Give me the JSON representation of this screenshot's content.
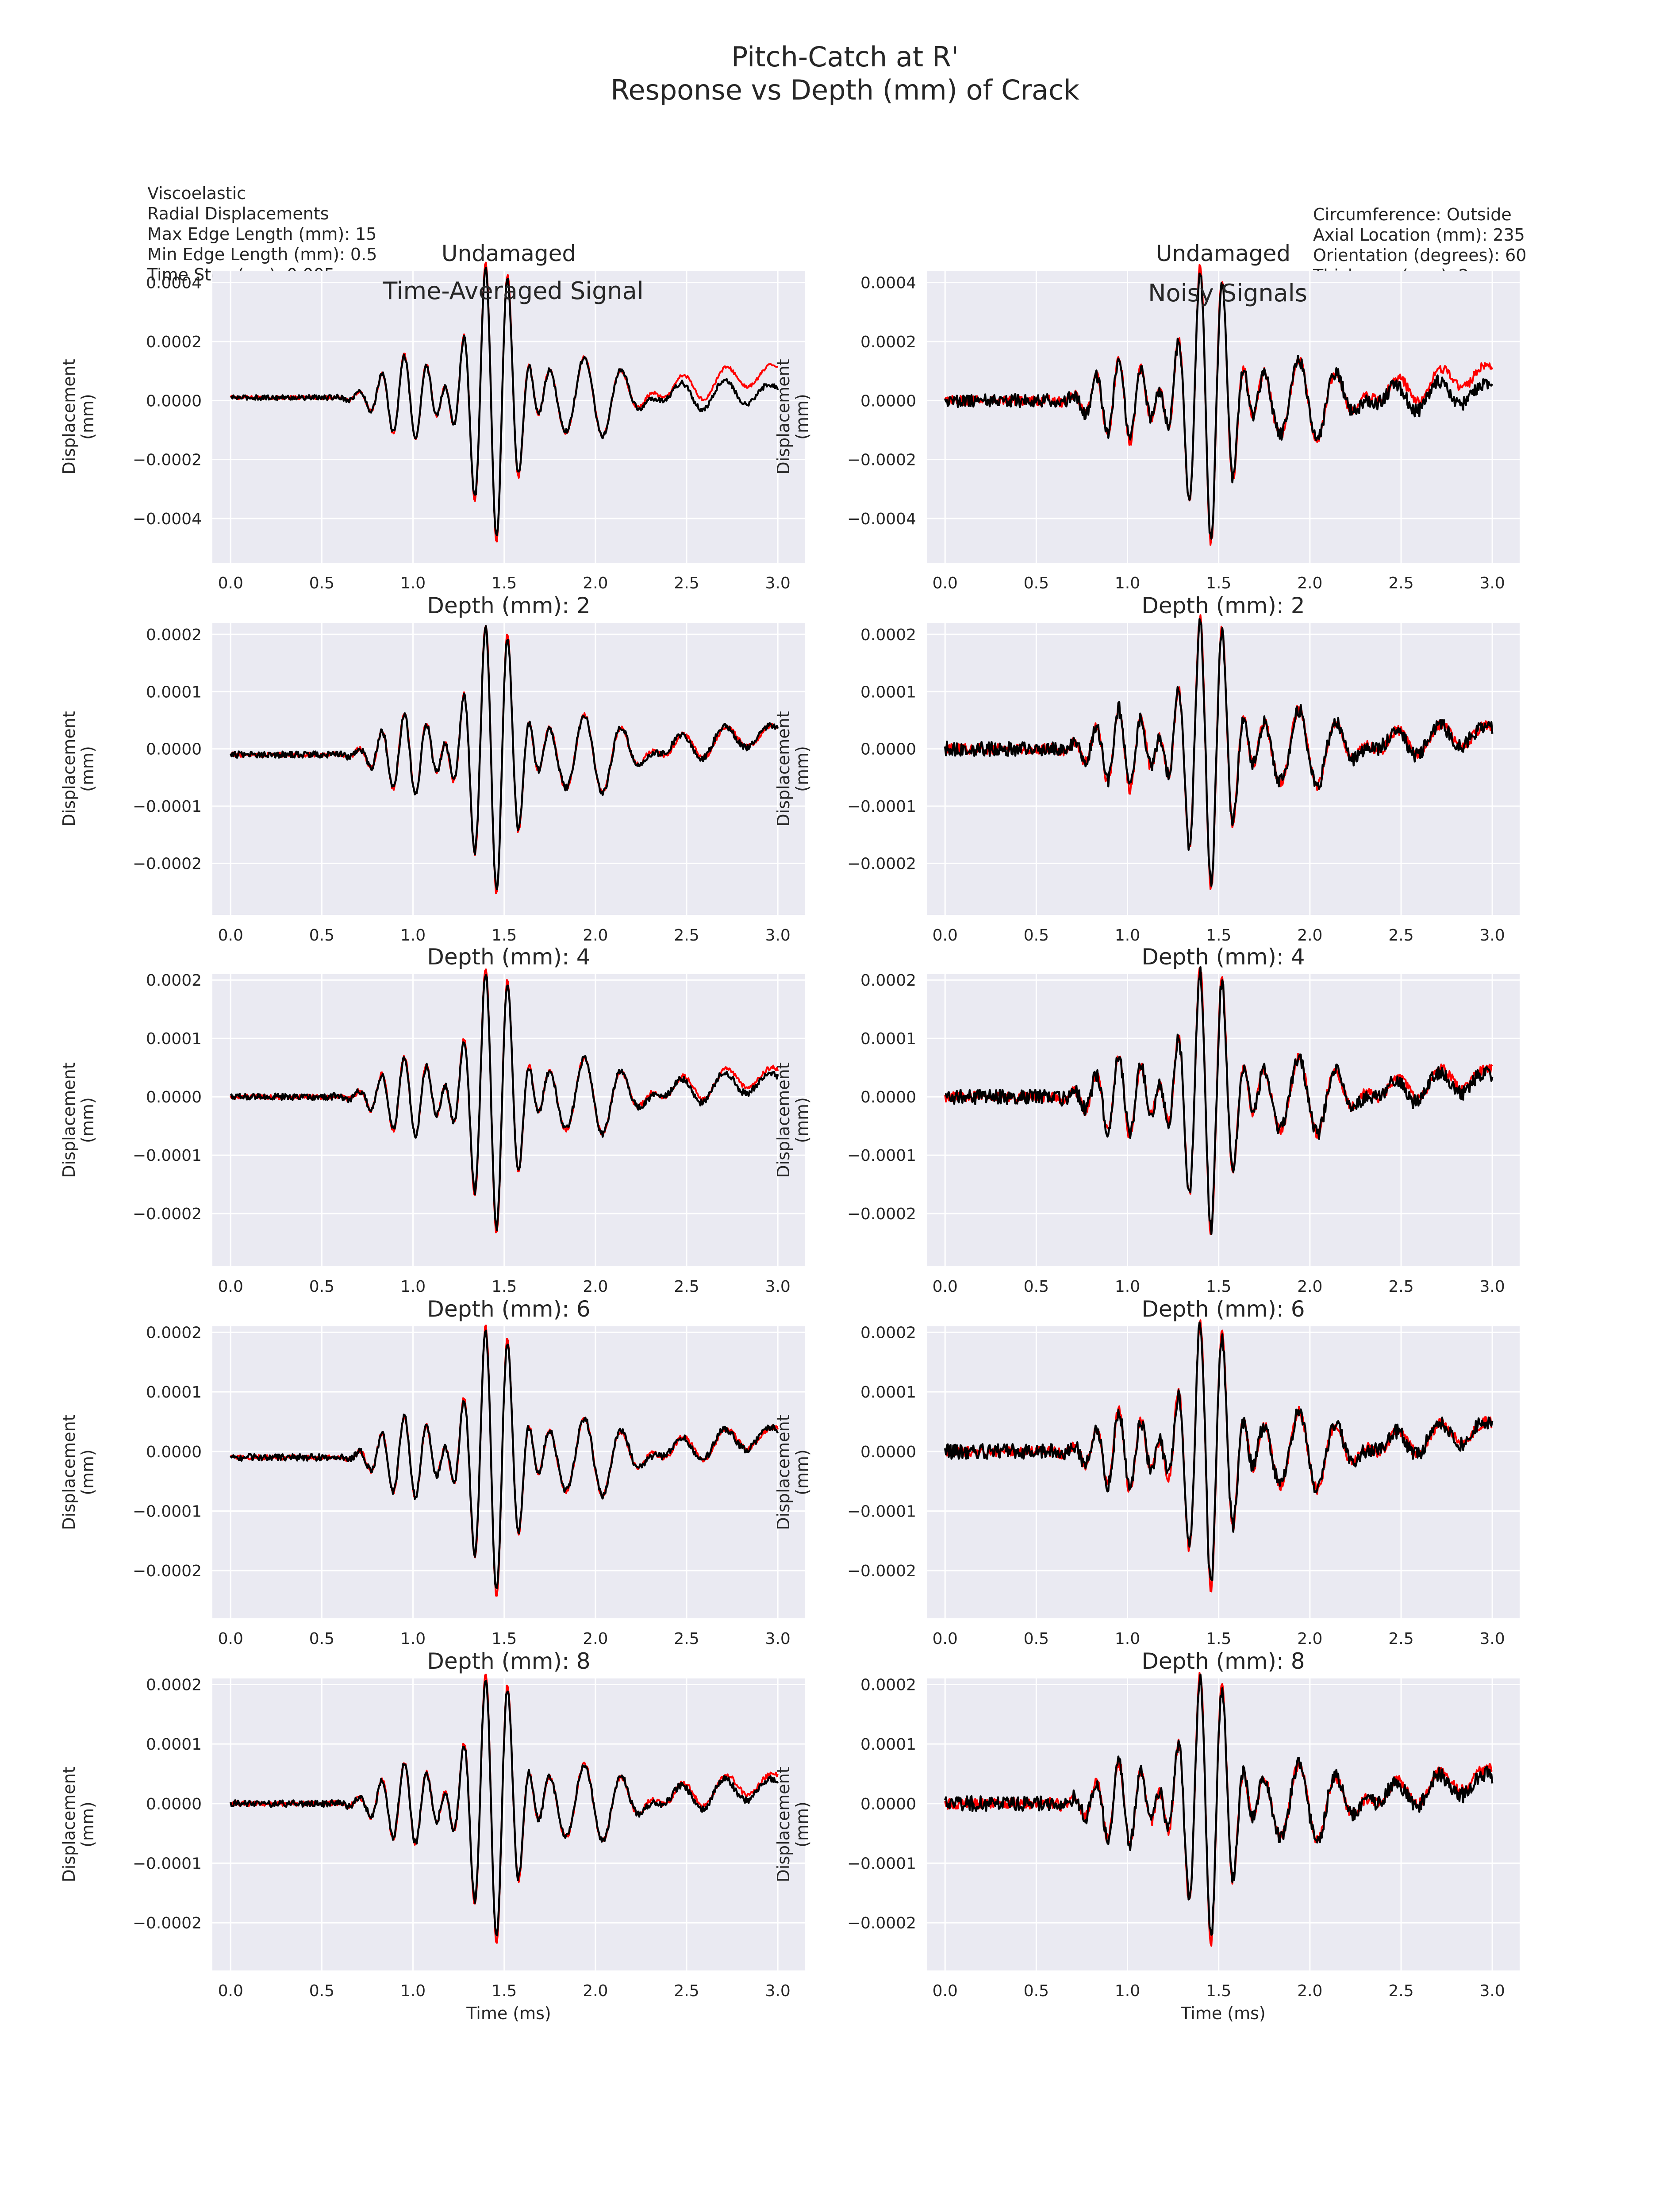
{
  "figure": {
    "title_line1": "Pitch-Catch at R'",
    "title_line2": "Response vs Depth (mm) of Crack",
    "annotation_left": [
      "Viscoelastic",
      "Radial Displacements",
      "Max Edge Length (mm): 15",
      "Min Edge Length (mm): 0.5",
      "Time Step (ms): 0.005"
    ],
    "annotation_right": [
      "Circumference: Outside",
      "Axial Location (mm): 235",
      "Orientation (degrees): 60",
      "Thickness (mm): 2"
    ],
    "column_titles": [
      "Time-Averaged Signal",
      "Noisy Signals"
    ],
    "colors": {
      "background": "#eaeaf2",
      "grid": "#ffffff",
      "series_1": "#ff0000",
      "series_2": "#000000"
    }
  },
  "chart_data": [
    {
      "type": "line",
      "title": "Undamaged",
      "xlabel": "",
      "ylabel": "Displacement\n(mm)",
      "xlim": [
        -0.1,
        3.15
      ],
      "ylim": [
        -0.00055,
        0.00044
      ],
      "xticks": [
        "0.0",
        "0.5",
        "1.0",
        "1.5",
        "2.0",
        "2.5",
        "3.0"
      ],
      "yticks": [
        "−0.0004",
        "−0.0002",
        "0.0000",
        "0.0002",
        "0.0004"
      ],
      "ytick_values": [
        -0.0004,
        -0.0002,
        0,
        0.0002,
        0.0004
      ],
      "grid": true,
      "amplitude": 0.00048,
      "noise": 6e-06,
      "series": [
        {
          "color": "#ff0000",
          "y_start": 1e-05,
          "y_end": 0.0001
        },
        {
          "color": "#000000",
          "y_start": 1e-05,
          "y_end": 3e-05
        }
      ]
    },
    {
      "type": "line",
      "title": "Undamaged",
      "xlabel": "",
      "ylabel": "Displacement\n(mm)",
      "xlim": [
        -0.1,
        3.15
      ],
      "ylim": [
        -0.00055,
        0.00044
      ],
      "xticks": [
        "0.0",
        "0.5",
        "1.0",
        "1.5",
        "2.0",
        "2.5",
        "3.0"
      ],
      "yticks": [
        "−0.0004",
        "−0.0002",
        "0.0000",
        "0.0002",
        "0.0004"
      ],
      "ytick_values": [
        -0.0004,
        -0.0002,
        0,
        0.0002,
        0.0004
      ],
      "grid": true,
      "amplitude": 0.00048,
      "noise": 1.6e-05,
      "series": [
        {
          "color": "#ff0000",
          "y_start": 0.0,
          "y_end": 0.0001
        },
        {
          "color": "#000000",
          "y_start": 0.0,
          "y_end": 3e-05
        }
      ]
    },
    {
      "type": "line",
      "title": "Depth (mm): 2",
      "xlabel": "",
      "ylabel": "Displacement\n(mm)",
      "xlim": [
        -0.1,
        3.15
      ],
      "ylim": [
        -0.00029,
        0.00022
      ],
      "xticks": [
        "0.0",
        "0.5",
        "1.0",
        "1.5",
        "2.0",
        "2.5",
        "3.0"
      ],
      "yticks": [
        "−0.0002",
        "−0.0001",
        "0.0000",
        "0.0001",
        "0.0002"
      ],
      "ytick_values": [
        -0.0002,
        -0.0001,
        0,
        0.0001,
        0.0002
      ],
      "grid": true,
      "amplitude": 0.00024,
      "noise": 4e-06,
      "series": [
        {
          "color": "#ff0000",
          "y_start": -1e-05,
          "y_end": 3e-05
        },
        {
          "color": "#000000",
          "y_start": -1e-05,
          "y_end": 3e-05
        }
      ]
    },
    {
      "type": "line",
      "title": "Depth (mm): 2",
      "xlabel": "",
      "ylabel": "Displacement\n(mm)",
      "xlim": [
        -0.1,
        3.15
      ],
      "ylim": [
        -0.00029,
        0.00022
      ],
      "xticks": [
        "0.0",
        "0.5",
        "1.0",
        "1.5",
        "2.0",
        "2.5",
        "3.0"
      ],
      "yticks": [
        "−0.0002",
        "−0.0001",
        "0.0000",
        "0.0001",
        "0.0002"
      ],
      "ytick_values": [
        -0.0002,
        -0.0001,
        0,
        0.0001,
        0.0002
      ],
      "grid": true,
      "amplitude": 0.00024,
      "noise": 9e-06,
      "series": [
        {
          "color": "#ff0000",
          "y_start": 0.0,
          "y_end": 3e-05
        },
        {
          "color": "#000000",
          "y_start": 0.0,
          "y_end": 3e-05
        }
      ]
    },
    {
      "type": "line",
      "title": "Depth (mm): 4",
      "xlabel": "",
      "ylabel": "Displacement\n(mm)",
      "xlim": [
        -0.1,
        3.15
      ],
      "ylim": [
        -0.00029,
        0.00021
      ],
      "xticks": [
        "0.0",
        "0.5",
        "1.0",
        "1.5",
        "2.0",
        "2.5",
        "3.0"
      ],
      "yticks": [
        "−0.0002",
        "−0.0001",
        "0.0000",
        "0.0001",
        "0.0002"
      ],
      "ytick_values": [
        -0.0002,
        -0.0001,
        0,
        0.0001,
        0.0002
      ],
      "grid": true,
      "amplitude": 0.00023,
      "noise": 4e-06,
      "series": [
        {
          "color": "#ff0000",
          "y_start": 0.0,
          "y_end": 4e-05
        },
        {
          "color": "#000000",
          "y_start": 0.0,
          "y_end": 3e-05
        }
      ]
    },
    {
      "type": "line",
      "title": "Depth (mm): 4",
      "xlabel": "",
      "ylabel": "Displacement\n(mm)",
      "xlim": [
        -0.1,
        3.15
      ],
      "ylim": [
        -0.00029,
        0.00021
      ],
      "xticks": [
        "0.0",
        "0.5",
        "1.0",
        "1.5",
        "2.0",
        "2.5",
        "3.0"
      ],
      "yticks": [
        "−0.0002",
        "−0.0001",
        "0.0000",
        "0.0001",
        "0.0002"
      ],
      "ytick_values": [
        -0.0002,
        -0.0001,
        0,
        0.0001,
        0.0002
      ],
      "grid": true,
      "amplitude": 0.00023,
      "noise": 9e-06,
      "series": [
        {
          "color": "#ff0000",
          "y_start": 0.0,
          "y_end": 4e-05
        },
        {
          "color": "#000000",
          "y_start": 0.0,
          "y_end": 3e-05
        }
      ]
    },
    {
      "type": "line",
      "title": "Depth (mm): 6",
      "xlabel": "",
      "ylabel": "Displacement\n(mm)",
      "xlim": [
        -0.1,
        3.15
      ],
      "ylim": [
        -0.00028,
        0.00021
      ],
      "xticks": [
        "0.0",
        "0.5",
        "1.0",
        "1.5",
        "2.0",
        "2.5",
        "3.0"
      ],
      "yticks": [
        "−0.0002",
        "−0.0001",
        "0.0000",
        "0.0001",
        "0.0002"
      ],
      "ytick_values": [
        -0.0002,
        -0.0001,
        0,
        0.0001,
        0.0002
      ],
      "grid": true,
      "amplitude": 0.00023,
      "noise": 4e-06,
      "series": [
        {
          "color": "#ff0000",
          "y_start": -1e-05,
          "y_end": 3e-05
        },
        {
          "color": "#000000",
          "y_start": -1e-05,
          "y_end": 3e-05
        }
      ]
    },
    {
      "type": "line",
      "title": "Depth (mm): 6",
      "xlabel": "",
      "ylabel": "Displacement\n(mm)",
      "xlim": [
        -0.1,
        3.15
      ],
      "ylim": [
        -0.00028,
        0.00021
      ],
      "xticks": [
        "0.0",
        "0.5",
        "1.0",
        "1.5",
        "2.0",
        "2.5",
        "3.0"
      ],
      "yticks": [
        "−0.0002",
        "−0.0001",
        "0.0000",
        "0.0001",
        "0.0002"
      ],
      "ytick_values": [
        -0.0002,
        -0.0001,
        0,
        0.0001,
        0.0002
      ],
      "grid": true,
      "amplitude": 0.00023,
      "noise": 9e-06,
      "series": [
        {
          "color": "#ff0000",
          "y_start": 0.0,
          "y_end": 4e-05
        },
        {
          "color": "#000000",
          "y_start": 0.0,
          "y_end": 4e-05
        }
      ]
    },
    {
      "type": "line",
      "title": "Depth (mm): 8",
      "xlabel": "Time (ms)",
      "ylabel": "Displacement\n(mm)",
      "xlim": [
        -0.1,
        3.15
      ],
      "ylim": [
        -0.00028,
        0.00021
      ],
      "xticks": [
        "0.0",
        "0.5",
        "1.0",
        "1.5",
        "2.0",
        "2.5",
        "3.0"
      ],
      "yticks": [
        "−0.0002",
        "−0.0001",
        "0.0000",
        "0.0001",
        "0.0002"
      ],
      "ytick_values": [
        -0.0002,
        -0.0001,
        0,
        0.0001,
        0.0002
      ],
      "grid": true,
      "amplitude": 0.00023,
      "noise": 4e-06,
      "series": [
        {
          "color": "#ff0000",
          "y_start": 0.0,
          "y_end": 4e-05
        },
        {
          "color": "#000000",
          "y_start": 0.0,
          "y_end": 3e-05
        }
      ]
    },
    {
      "type": "line",
      "title": "Depth (mm): 8",
      "xlabel": "Time (ms)",
      "ylabel": "Displacement\n(mm)",
      "xlim": [
        -0.1,
        3.15
      ],
      "ylim": [
        -0.00028,
        0.00021
      ],
      "xticks": [
        "0.0",
        "0.5",
        "1.0",
        "1.5",
        "2.0",
        "2.5",
        "3.0"
      ],
      "yticks": [
        "−0.0002",
        "−0.0001",
        "0.0000",
        "0.0001",
        "0.0002"
      ],
      "ytick_values": [
        -0.0002,
        -0.0001,
        0,
        0.0001,
        0.0002
      ],
      "grid": true,
      "amplitude": 0.00023,
      "noise": 9e-06,
      "series": [
        {
          "color": "#ff0000",
          "y_start": 0.0,
          "y_end": 5e-05
        },
        {
          "color": "#000000",
          "y_start": 0.0,
          "y_end": 4e-05
        }
      ]
    }
  ]
}
